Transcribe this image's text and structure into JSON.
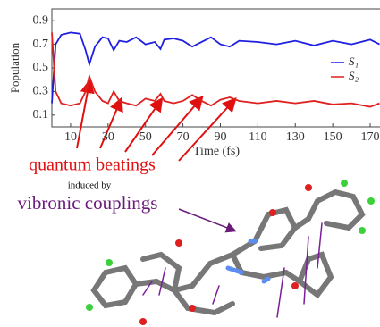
{
  "chart_data": {
    "type": "line",
    "xlabel": "Time (fs)",
    "ylabel": "Population",
    "x": [
      0,
      2,
      5,
      10,
      15,
      18,
      20,
      23,
      27,
      30,
      33,
      36,
      40,
      45,
      50,
      55,
      58,
      60,
      65,
      70,
      75,
      80,
      85,
      90,
      95,
      100,
      110,
      120,
      130,
      140,
      150,
      160,
      170,
      175
    ],
    "series": [
      {
        "name": "S₁",
        "color": "#1f1fe0",
        "values": [
          0.2,
          0.7,
          0.78,
          0.8,
          0.79,
          0.65,
          0.53,
          0.68,
          0.76,
          0.75,
          0.65,
          0.73,
          0.72,
          0.76,
          0.7,
          0.72,
          0.66,
          0.74,
          0.75,
          0.73,
          0.68,
          0.72,
          0.76,
          0.7,
          0.68,
          0.73,
          0.72,
          0.7,
          0.73,
          0.69,
          0.73,
          0.7,
          0.74,
          0.7
        ]
      },
      {
        "name": "S₂",
        "color": "#e01f1f",
        "values": [
          0.8,
          0.3,
          0.2,
          0.18,
          0.2,
          0.3,
          0.43,
          0.3,
          0.22,
          0.2,
          0.3,
          0.22,
          0.2,
          0.18,
          0.24,
          0.22,
          0.28,
          0.22,
          0.2,
          0.22,
          0.27,
          0.22,
          0.18,
          0.23,
          0.25,
          0.22,
          0.2,
          0.22,
          0.2,
          0.22,
          0.19,
          0.2,
          0.17,
          0.2
        ]
      }
    ],
    "xlim": [
      0,
      175
    ],
    "ylim": [
      0,
      1
    ],
    "xticks": [
      10,
      30,
      50,
      70,
      90,
      110,
      130,
      150,
      170
    ],
    "yticks": [
      0.1,
      0.3,
      0.5,
      0.7,
      0.9
    ],
    "legend": "upper-right",
    "annotations": [
      "quantum beatings",
      "induced by",
      "vibronic couplings"
    ]
  }
}
